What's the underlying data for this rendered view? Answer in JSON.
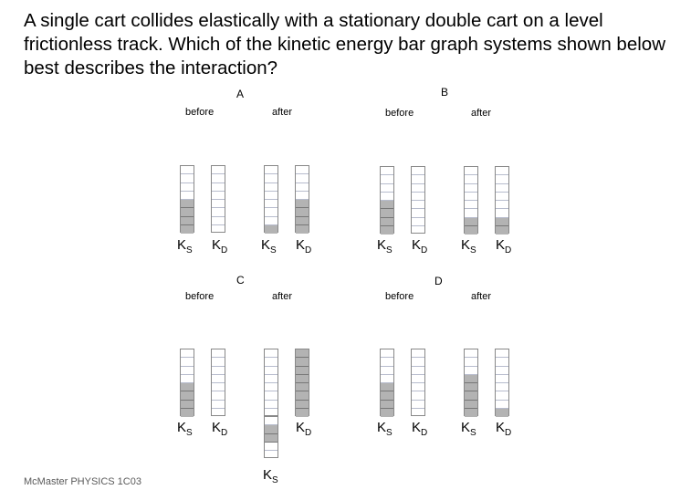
{
  "question": "A single cart collides elastically with a stationary double cart on a level frictionless track.  Which of the kinetic energy bar graph systems shown below best describes the interaction?",
  "footer": "McMaster PHYSICS 1C03",
  "labels": {
    "before": "before",
    "after": "after",
    "k": "K",
    "sub_s": "S",
    "sub_d": "D"
  },
  "panels": [
    {
      "letter": "A",
      "before": {
        "KS": 4,
        "KD": 0
      },
      "after": {
        "KS": 1,
        "KD": 4
      }
    },
    {
      "letter": "B",
      "before": {
        "KS": 4,
        "KD": 0
      },
      "after": {
        "KS": 2,
        "KD": 2
      }
    },
    {
      "letter": "C",
      "before": {
        "KS": 4,
        "KD": 0
      },
      "after": {
        "KS": -2,
        "KD": 8
      }
    },
    {
      "letter": "D",
      "before": {
        "KS": 4,
        "KD": 0
      },
      "after": {
        "KS": 5,
        "KD": 1
      }
    }
  ],
  "bar_scale_units": 8,
  "colors": {
    "fill": "#b3b3b3",
    "grid": "#b7bccd",
    "frame": "#888888"
  }
}
